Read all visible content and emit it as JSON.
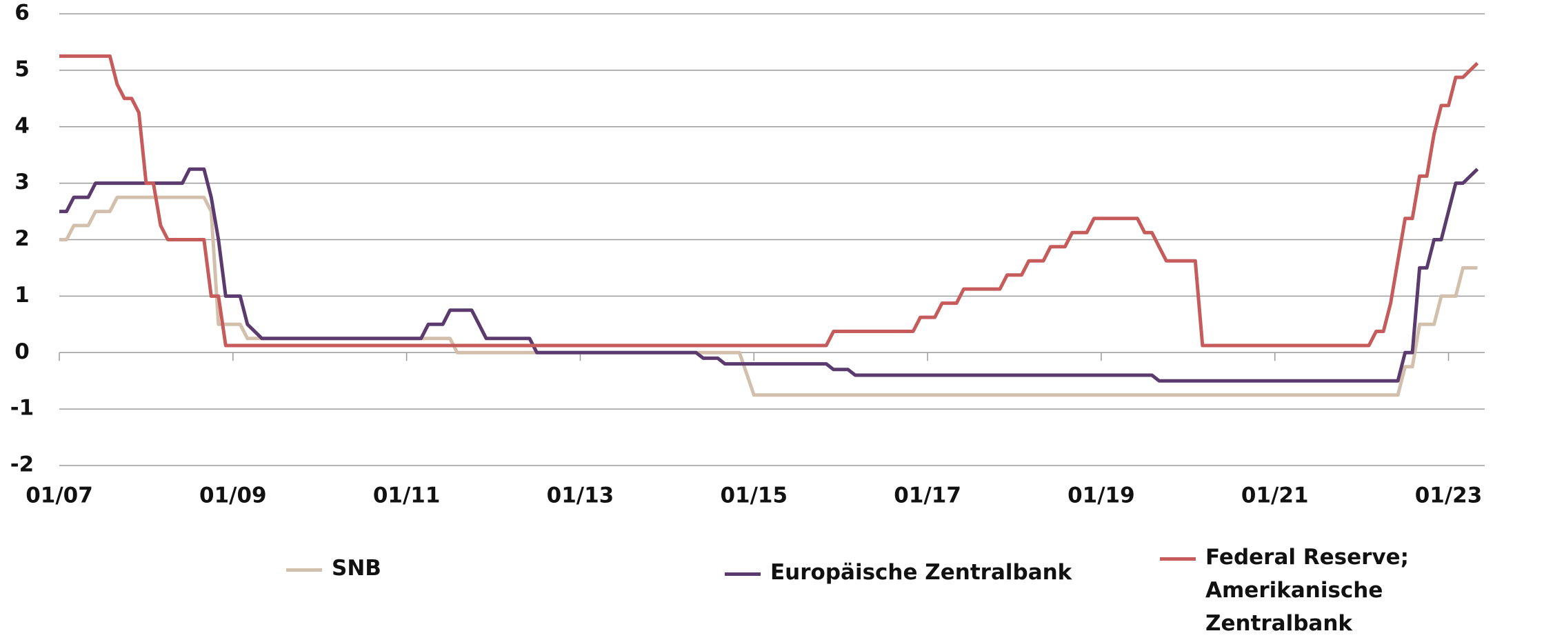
{
  "chart_data": {
    "type": "line",
    "xlim": [
      "01/07",
      "06/23"
    ],
    "xticks": [
      "01/07",
      "01/09",
      "01/11",
      "01/13",
      "01/15",
      "01/17",
      "01/19",
      "01/21",
      "01/23"
    ],
    "ylim": [
      -2,
      6
    ],
    "yticks": [
      -2,
      -1,
      0,
      1,
      2,
      3,
      4,
      5,
      6
    ],
    "grid": true,
    "legend": "bottom",
    "series": [
      {
        "name": "SNB",
        "color": "#d2c0ac",
        "x": [
          "01/07",
          "02/07",
          "03/07",
          "05/07",
          "06/07",
          "08/07",
          "09/07",
          "09/08",
          "10/08",
          "11/08",
          "12/08",
          "02/09",
          "03/09",
          "07/11",
          "08/11",
          "11/14",
          "01/15",
          "06/22",
          "07/22",
          "08/22",
          "09/22",
          "11/22",
          "12/22",
          "02/23",
          "03/23",
          "05/23"
        ],
        "values": [
          2,
          2,
          2.25,
          2.25,
          2.5,
          2.5,
          2.75,
          2.75,
          2.5,
          0.5,
          0.5,
          0.5,
          0.25,
          0.25,
          0,
          0,
          -0.75,
          -0.75,
          -0.25,
          -0.25,
          0.5,
          0.5,
          1,
          1,
          1.5,
          1.5
        ]
      },
      {
        "name": "Europäische Zentralbank",
        "color": "#5b3a6d",
        "x": [
          "01/07",
          "02/07",
          "03/07",
          "05/07",
          "06/07",
          "06/08",
          "07/08",
          "09/08",
          "10/08",
          "11/08",
          "12/08",
          "02/09",
          "03/09",
          "05/09",
          "03/11",
          "04/11",
          "06/11",
          "07/11",
          "10/11",
          "12/11",
          "06/12",
          "07/12",
          "05/14",
          "06/14",
          "08/14",
          "09/14",
          "11/15",
          "12/15",
          "02/16",
          "03/16",
          "08/19",
          "09/19",
          "06/22",
          "07/22",
          "08/22",
          "09/22",
          "10/22",
          "11/22",
          "12/22",
          "02/23",
          "03/23",
          "05/23"
        ],
        "values": [
          2.5,
          2.5,
          2.75,
          2.75,
          3,
          3,
          3.25,
          3.25,
          2.75,
          2,
          1,
          1,
          0.5,
          0.25,
          0.25,
          0.5,
          0.5,
          0.75,
          0.75,
          0.25,
          0.25,
          0,
          0,
          -0.1,
          -0.1,
          -0.2,
          -0.2,
          -0.3,
          -0.3,
          -0.4,
          -0.4,
          -0.5,
          -0.5,
          0,
          0,
          1.5,
          1.5,
          2,
          2,
          3,
          3,
          3.25
        ]
      },
      {
        "name": "Federal Reserve; Amerikanische Zentralbank",
        "color": "#c65b5b",
        "x": [
          "01/07",
          "08/07",
          "09/07",
          "10/07",
          "11/07",
          "12/07",
          "01/08",
          "02/08",
          "03/08",
          "04/08",
          "09/08",
          "10/08",
          "11/08",
          "12/08",
          "11/15",
          "12/15",
          "11/16",
          "12/16",
          "02/17",
          "03/17",
          "05/17",
          "06/17",
          "11/17",
          "12/17",
          "02/18",
          "03/18",
          "05/18",
          "06/18",
          "08/18",
          "09/18",
          "11/18",
          "12/18",
          "06/19",
          "07/19",
          "08/19",
          "09/19",
          "10/19",
          "02/20",
          "03/20",
          "02/22",
          "03/22",
          "04/22",
          "05/22",
          "06/22",
          "07/22",
          "08/22",
          "09/22",
          "10/22",
          "11/22",
          "12/22",
          "01/23",
          "02/23",
          "03/23",
          "05/23"
        ],
        "values": [
          5.25,
          5.25,
          4.75,
          4.5,
          4.5,
          4.25,
          3,
          3,
          2.25,
          2,
          2,
          1,
          1,
          0.125,
          0.125,
          0.375,
          0.375,
          0.625,
          0.625,
          0.875,
          0.875,
          1.125,
          1.125,
          1.375,
          1.375,
          1.625,
          1.625,
          1.875,
          1.875,
          2.125,
          2.125,
          2.375,
          2.375,
          2.125,
          2.125,
          1.875,
          1.625,
          1.625,
          0.125,
          0.125,
          0.375,
          0.375,
          0.875,
          1.625,
          2.375,
          2.375,
          3.125,
          3.125,
          3.875,
          4.375,
          4.375,
          4.875,
          4.875,
          5.125
        ]
      }
    ]
  }
}
